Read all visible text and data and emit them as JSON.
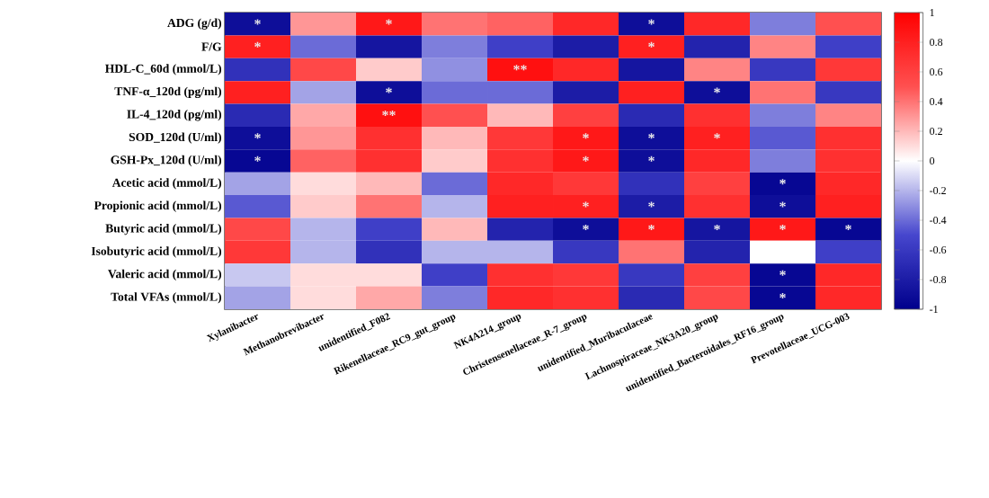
{
  "chart_data": {
    "type": "heatmap",
    "categories": [
      "Xylanibacter",
      "Methanobrevibacter",
      "unidentified_F082",
      "Rikenellaceae_RC9_gut_group",
      "NK4A214_group",
      "Christensenellaceae_R-7_group",
      "unidentified_Muribaculaceae",
      "Lachnospiraceae_NK3A20_group",
      "unidentified_Bacteroidales_RF16_group",
      "Prevotellaceae_UCG-003"
    ],
    "y_categories": [
      "ADG (g/d)",
      "F/G",
      "HDL-C_60d (mmol/L)",
      "TNF-α_120d (pg/ml)",
      "IL-4_120d (pg/ml)",
      "SOD_120d (U/ml)",
      "GSH-Px_120d (U/ml)",
      "Acetic acid (mmol/L)",
      "Propionic acid (mmol/L)",
      "Butyric acid (mmol/L)",
      "Isobutyric acid (mmol/L)",
      "Valeric acid (mmol/L)",
      "Total VFAs (mmol/L)"
    ],
    "cells": [
      [
        -0.9,
        0.3,
        0.85,
        0.4,
        0.45,
        0.75,
        -0.9,
        0.75,
        -0.35,
        0.5
      ],
      [
        0.8,
        -0.4,
        -0.85,
        -0.35,
        -0.55,
        -0.8,
        0.8,
        -0.75,
        0.35,
        -0.55
      ],
      [
        -0.65,
        0.55,
        0.15,
        -0.3,
        0.9,
        0.75,
        -0.85,
        0.35,
        -0.6,
        0.65
      ],
      [
        0.8,
        -0.25,
        -0.9,
        -0.4,
        -0.4,
        -0.8,
        0.8,
        -0.9,
        0.4,
        -0.6
      ],
      [
        -0.7,
        0.25,
        0.9,
        0.5,
        0.2,
        0.6,
        -0.7,
        0.7,
        -0.35,
        0.35
      ],
      [
        -0.9,
        0.3,
        0.7,
        0.2,
        0.65,
        0.85,
        -0.9,
        0.8,
        -0.45,
        0.7
      ],
      [
        -0.95,
        0.45,
        0.7,
        0.15,
        0.7,
        0.85,
        -0.9,
        0.75,
        -0.35,
        0.7
      ],
      [
        -0.25,
        0.1,
        0.2,
        -0.4,
        0.75,
        0.65,
        -0.65,
        0.6,
        -0.95,
        0.75
      ],
      [
        -0.45,
        0.15,
        0.4,
        -0.2,
        0.8,
        0.8,
        -0.8,
        0.7,
        -0.9,
        0.8
      ],
      [
        0.55,
        -0.2,
        -0.55,
        0.2,
        -0.75,
        -0.9,
        0.85,
        -0.85,
        0.85,
        -0.95
      ],
      [
        0.65,
        -0.2,
        -0.65,
        -0.2,
        -0.2,
        -0.6,
        0.4,
        -0.75,
        0.0,
        -0.55
      ],
      [
        -0.15,
        0.1,
        0.1,
        -0.55,
        0.7,
        0.65,
        -0.6,
        0.6,
        -0.95,
        0.75
      ],
      [
        -0.25,
        0.1,
        0.25,
        -0.35,
        0.75,
        0.7,
        -0.7,
        0.55,
        -0.95,
        0.75
      ]
    ],
    "cell_labels": [
      [
        "*",
        null,
        "*",
        null,
        null,
        null,
        "*",
        null,
        null,
        null
      ],
      [
        "*",
        null,
        null,
        null,
        null,
        null,
        "*",
        null,
        null,
        null
      ],
      [
        null,
        null,
        null,
        null,
        "**",
        null,
        null,
        null,
        null,
        null
      ],
      [
        null,
        null,
        "*",
        null,
        null,
        null,
        null,
        "*",
        null,
        null
      ],
      [
        null,
        null,
        "**",
        null,
        null,
        null,
        null,
        null,
        null,
        null
      ],
      [
        "*",
        null,
        null,
        null,
        null,
        "*",
        "*",
        "*",
        null,
        null
      ],
      [
        "*",
        null,
        null,
        null,
        null,
        "*",
        "*",
        null,
        null,
        null
      ],
      [
        null,
        null,
        null,
        null,
        null,
        null,
        null,
        null,
        "*",
        null
      ],
      [
        null,
        null,
        null,
        null,
        null,
        "*",
        "*",
        null,
        "*",
        null
      ],
      [
        null,
        null,
        null,
        null,
        null,
        "*",
        "*",
        "*",
        "*",
        "*"
      ],
      [
        null,
        null,
        null,
        null,
        null,
        null,
        null,
        null,
        null,
        null
      ],
      [
        null,
        null,
        null,
        null,
        null,
        null,
        null,
        null,
        "*",
        null
      ],
      [
        null,
        null,
        null,
        null,
        null,
        null,
        null,
        null,
        "*",
        null
      ]
    ],
    "clim": [
      -1,
      1
    ],
    "cticks": [
      -1,
      -0.8,
      -0.6,
      -0.4,
      -0.2,
      0,
      0.2,
      0.4,
      0.6,
      0.8,
      1
    ]
  }
}
